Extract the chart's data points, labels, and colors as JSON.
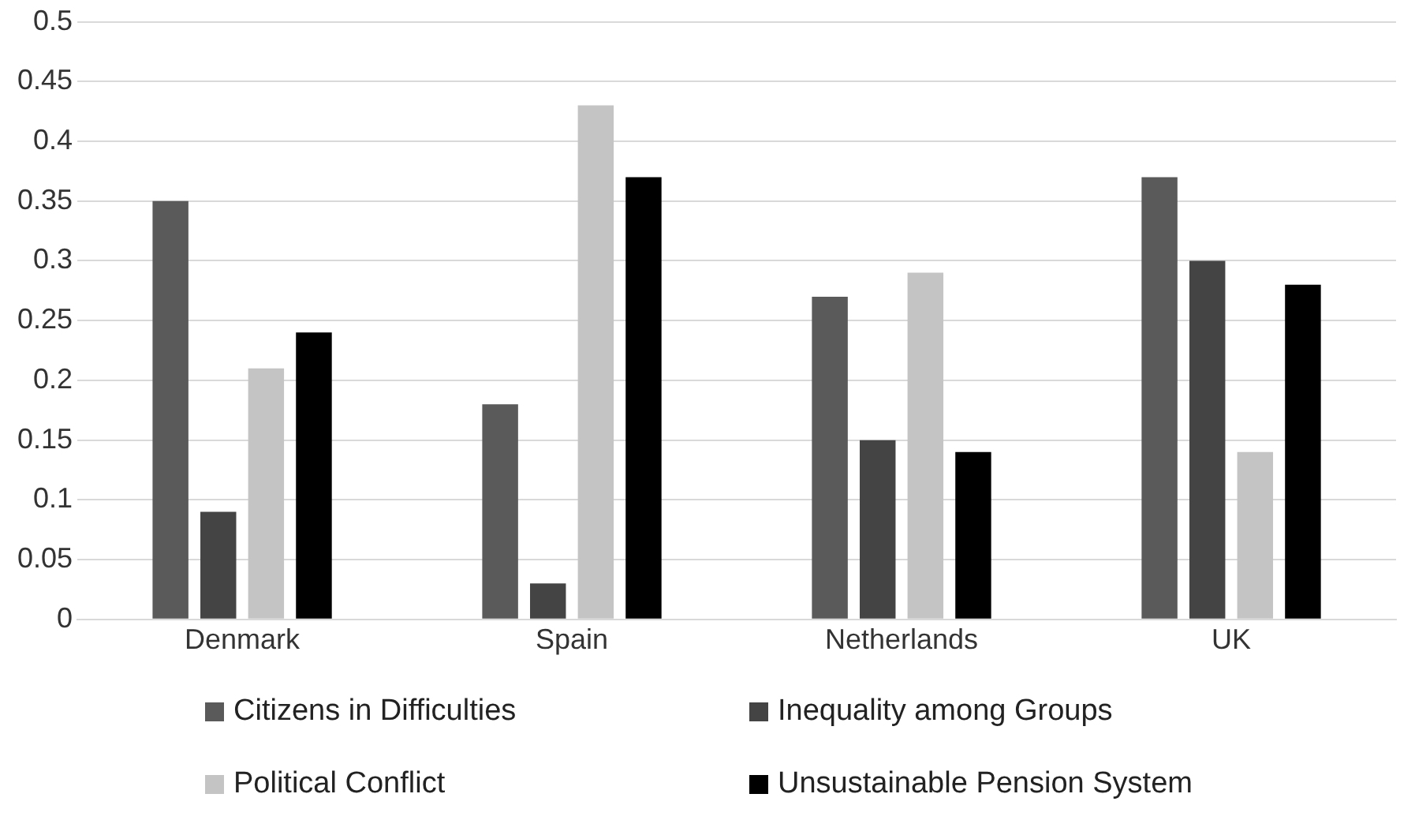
{
  "chart_data": {
    "type": "bar",
    "categories": [
      "Denmark",
      "Spain",
      "Netherlands",
      "UK"
    ],
    "series": [
      {
        "name": "Citizens in Difficulties",
        "color": "#5a5a5a",
        "values": [
          0.35,
          0.18,
          0.27,
          0.37
        ]
      },
      {
        "name": "Inequality among Groups",
        "color": "#444444",
        "values": [
          0.09,
          0.03,
          0.15,
          0.3
        ]
      },
      {
        "name": "Political Conflict",
        "color": "#c4c4c4",
        "values": [
          0.21,
          0.43,
          0.29,
          0.14
        ]
      },
      {
        "name": "Unsustainable Pension System",
        "color": "#000000",
        "values": [
          0.24,
          0.37,
          0.14,
          0.28
        ]
      }
    ],
    "ylim": [
      0,
      0.5
    ],
    "yticks": [
      0,
      0.05,
      0.1,
      0.15,
      0.2,
      0.25,
      0.3,
      0.35,
      0.4,
      0.45,
      0.5
    ],
    "grid": "y",
    "legend": "bottom"
  }
}
